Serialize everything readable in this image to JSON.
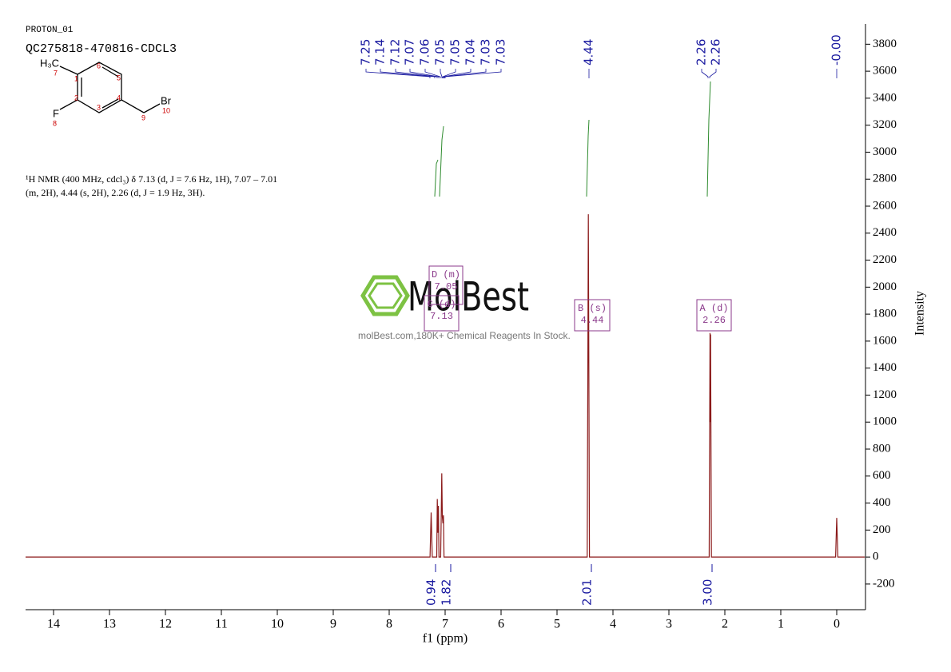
{
  "chart_data": {
    "type": "line",
    "title": "PROTON_01",
    "subtitle": "QC275818-470816-CDCL3",
    "description": [
      "¹H NMR (400 MHz, cdcl₃) δ 7.13 (d, J = 7.6 Hz, 1H), 7.07 – 7.01",
      "(m, 2H), 4.44 (s, 2H), 2.26 (d, J = 1.9 Hz, 3H)."
    ],
    "structure_labels": [
      "H₃C",
      "7",
      "1",
      "6",
      "5",
      "4",
      "2",
      "3",
      "F",
      "8",
      "9",
      "Br",
      "10"
    ],
    "x_label": "f1 (ppm)",
    "y_label": "Intensity",
    "x": [
      14.5,
      7.27,
      7.25,
      7.23,
      7.15,
      7.14,
      7.13,
      7.12,
      7.11,
      7.08,
      7.07,
      7.06,
      7.05,
      7.04,
      7.03,
      7.02,
      4.46,
      4.44,
      4.42,
      2.28,
      2.265,
      2.26,
      2.255,
      2.24,
      0.02,
      0.0,
      -0.02,
      -0.5
    ],
    "values": [
      0,
      0,
      330,
      0,
      0,
      430,
      180,
      380,
      0,
      0,
      300,
      620,
      300,
      250,
      310,
      0,
      0,
      2540,
      0,
      0,
      1660,
      1000,
      1650,
      0,
      0,
      290,
      0,
      0
    ],
    "color": "#8b1a1a",
    "xlim": [
      14.5,
      -0.5
    ],
    "xticks": [
      14,
      13,
      12,
      11,
      10,
      9,
      8,
      7,
      6,
      5,
      4,
      3,
      2,
      1,
      0
    ],
    "ylim": [
      -390,
      3950
    ],
    "yticks": [
      -200,
      0,
      200,
      400,
      600,
      800,
      1000,
      1200,
      1400,
      1600,
      1800,
      2000,
      2200,
      2400,
      2600,
      2800,
      3000,
      3200,
      3400,
      3600,
      3800
    ],
    "peak_labels": [
      "7.25",
      "7.14",
      "7.12",
      "7.07",
      "7.06",
      "7.05",
      "7.05",
      "7.04",
      "7.03",
      "7.03",
      "4.44",
      "2.26",
      "2.26",
      "-0.00"
    ],
    "integrals": [
      "0.94",
      "1.82",
      "2.01",
      "3.00"
    ],
    "multiplets": [
      [
        "D (m)",
        "7.05"
      ],
      [
        "C (d)",
        "7.13"
      ],
      [
        "B (s)",
        "4.44"
      ],
      [
        "A (d)",
        "2.26"
      ]
    ],
    "watermark": [
      "MolBest",
      "molBest.com,180K+ Chemical Reagents In Stock."
    ]
  }
}
